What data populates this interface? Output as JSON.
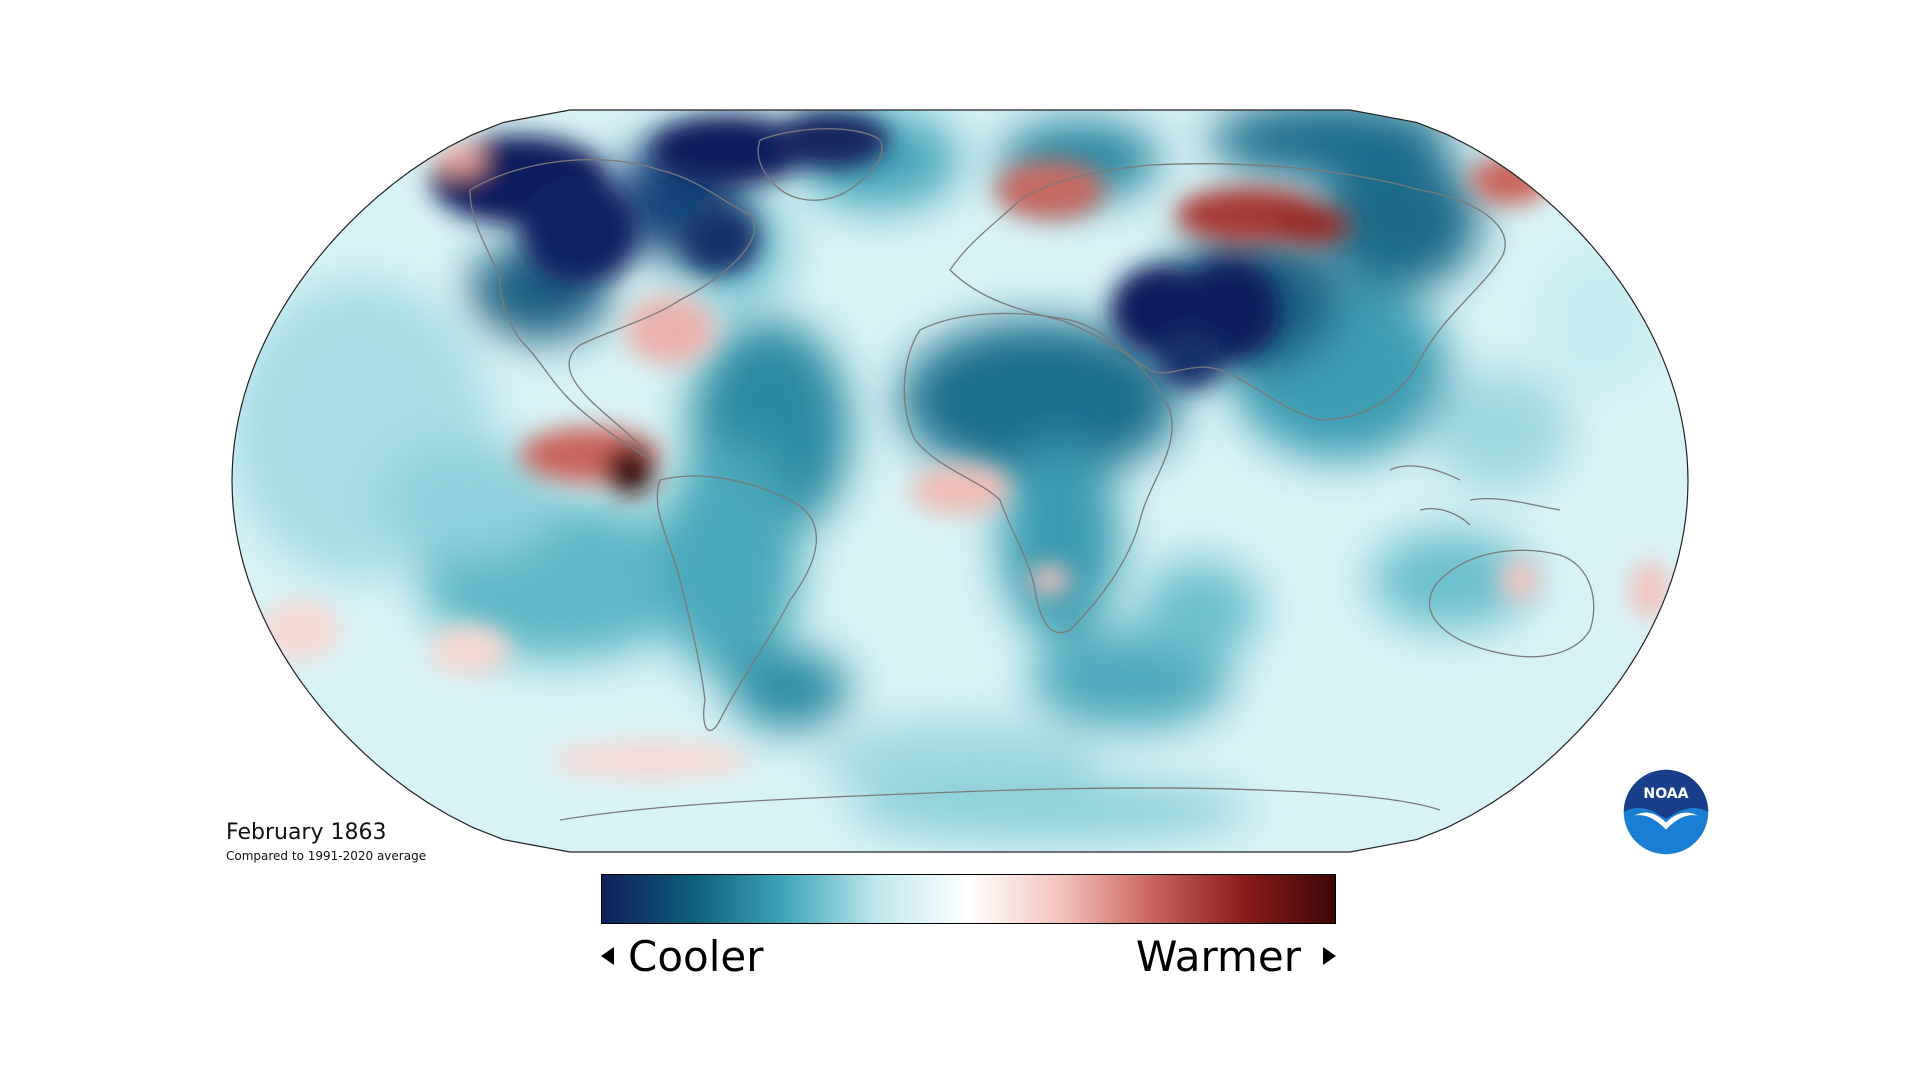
{
  "map": {
    "title": "February 1863",
    "subtitle": "Compared to 1991-2020 average",
    "projection": "robinson",
    "anomaly_regions": [
      {
        "name": "north-canada-cold",
        "tone": "strong-cool",
        "value": -1.0
      },
      {
        "name": "greenland-cold",
        "tone": "strong-cool",
        "value": -1.0
      },
      {
        "name": "middle-east-cold",
        "tone": "strong-cool",
        "value": -1.0
      },
      {
        "name": "central-asia-cold",
        "tone": "cool",
        "value": -0.7
      },
      {
        "name": "africa-cold",
        "tone": "cool",
        "value": -0.6
      },
      {
        "name": "south-atlantic-cold",
        "tone": "cool",
        "value": -0.5
      },
      {
        "name": "scandinavia-warm",
        "tone": "warm",
        "value": 0.6
      },
      {
        "name": "siberia-warm",
        "tone": "warm",
        "value": 0.7
      },
      {
        "name": "east-pacific-warm",
        "tone": "strong-warm",
        "value": 0.9
      },
      {
        "name": "gulf-of-mexico-warm",
        "tone": "warm",
        "value": 0.4
      }
    ]
  },
  "legend": {
    "cooler_label": "Cooler",
    "warmer_label": "Warmer",
    "colors": [
      "#0f1f5c",
      "#0e5f7a",
      "#3ea6b8",
      "#bfe8ee",
      "#ffffff",
      "#f4c3bd",
      "#c9655c",
      "#8c1c1a",
      "#3b0707"
    ]
  },
  "logo": {
    "text": "NOAA",
    "colors": {
      "top": "#1a3f8a",
      "bottom": "#1a7fd4",
      "bird": "#ffffff"
    }
  }
}
